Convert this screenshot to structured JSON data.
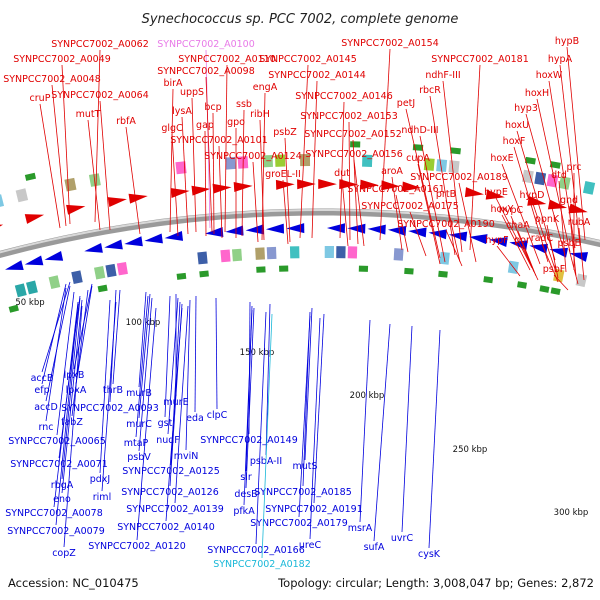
{
  "title": "Synechococcus sp. PCC 7002, complete genome",
  "footer": {
    "accession": "Accession: NC_010475",
    "info": "Topology: circular; Length: 3,008,047 bp; Genes: 2,872"
  },
  "colors": {
    "forward": "#e00000",
    "reverse": "#0000dd",
    "highlight_forward": "#e87be8",
    "highlight_reverse": "#19b8d8",
    "backbone": "#808080"
  },
  "scale_ticks": [
    "50 kbp",
    "100 kbp",
    "150 kbp",
    "200 kbp",
    "250 kbp",
    "300 kbp"
  ],
  "forward_labels": [
    "hypB",
    "SYNPCC7002_A0181",
    "hypA",
    "SYNPCC7002_A0154",
    "hoxW",
    "SYNPCC7002_A0100",
    "SYNPCC7002_A0062",
    "SYNPCC7002_A0145",
    "ndhF-III",
    "SYNPCC7002_A0049",
    "SYNPCC7002_A0110",
    "hoxH",
    "SYNPCC7002_A0098",
    "SYNPCC7002_A0144",
    "rbcR",
    "hyp3",
    "cruP",
    "SYNPCC7002_A0048",
    "birA",
    "engA",
    "petJ",
    "hoxU",
    "SYNPCC7002_A0064",
    "uppS",
    "SYNPCC7002_A0146",
    "mutT",
    "rbfA",
    "lysA",
    "bcp",
    "ssb",
    "SYNPCC7002_A0153",
    "ribH",
    "ndhD-III",
    "hoxF",
    "glgC",
    "gap",
    "gpo",
    "psbZ",
    "SYNPCC7002_A0152",
    "SYNPCC7002_A0101",
    "SYNPCC7002_A0124",
    "SYNPCC7002_A0156",
    "cupA",
    "hoxE",
    "prc",
    "groEL-II",
    "dut",
    "aroA",
    "dtd",
    "SYNPCC7002_A0189",
    "hypD",
    "SYNPCC7002_A0161",
    "prtB",
    "hypE",
    "gnd",
    "SYNPCC7002_A0175",
    "hoxY",
    "ppnK",
    "hypC",
    "rubA",
    "chaA",
    "SYNPCC7002_A0190",
    "radC",
    "psbE",
    "hypF",
    "por",
    "psbF"
  ],
  "reverse_labels": [
    "accB",
    "lpxB",
    "efp",
    "lpxA",
    "accD",
    "SYNPCC7002_A0093",
    "thrB",
    "murB",
    "fabZ",
    "rnc",
    "murE",
    "murC",
    "SYNPCC7002_A0065",
    "eda",
    "clpC",
    "gst",
    "mtaP",
    "psbV",
    "nudF",
    "SYNPCC7002_A0149",
    "mviN",
    "SYNPCC7002_A0071",
    "pdxJ",
    "rbgA",
    "SYNPCC7002_A0125",
    "psbA-II",
    "mutS",
    "slr",
    "riml",
    "eno",
    "SYNPCC7002_A0126",
    "desB",
    "SYNPCC7002_A0185",
    "SYNPCC7002_A0139",
    "pfkA",
    "SYNPCC7002_A0078",
    "SYNPCC7002_A0191",
    "SYNPCC7002_A0179",
    "SYNPCC7002_A0079",
    "msrA",
    "uvrC",
    "SYNPCC7002_A0140",
    "ureC",
    "SYNPCC7002_A0120",
    "sufA",
    "copZ",
    "SYNPCC7002_A0166",
    "cysK",
    "SYNPCC7002_A0182"
  ]
}
